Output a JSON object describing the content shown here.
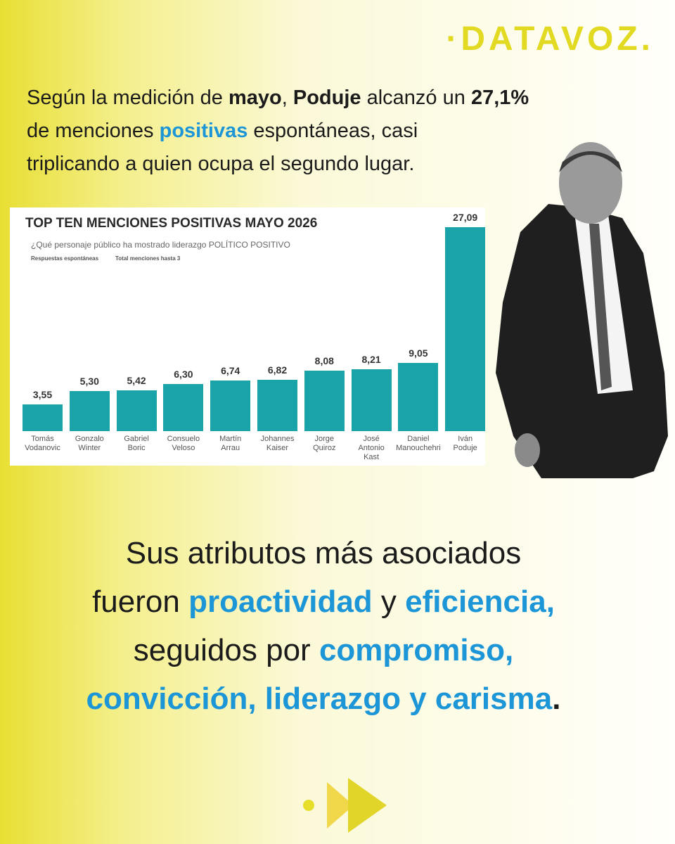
{
  "logo": "·DATAVOZ.",
  "headline": {
    "lines": [
      [
        {
          "text": "Según la medición de ",
          "style": "normal"
        },
        {
          "text": "mayo",
          "style": "bold"
        },
        {
          "text": ", ",
          "style": "normal"
        },
        {
          "text": "Poduje",
          "style": "bold"
        },
        {
          "text": " alcanzó un ",
          "style": "normal"
        },
        {
          "text": "27,1%",
          "style": "bold"
        }
      ],
      [
        {
          "text": "de menciones ",
          "style": "normal"
        },
        {
          "text": "positivas",
          "style": "blue"
        },
        {
          "text": " espontáneas, casi",
          "style": "normal"
        }
      ],
      [
        {
          "text": "triplicando a quien ocupa el segundo lugar.",
          "style": "normal"
        }
      ]
    ]
  },
  "chart_data": {
    "type": "bar",
    "title": "TOP TEN MENCIONES POSITIVAS MAYO 2026",
    "subtitle": "¿Qué personaje público ha mostrado liderazgo POLÍTICO POSITIVO",
    "notes": [
      "Respuestas espontáneas",
      "Total menciones hasta 3"
    ],
    "categories": [
      "Tomás Vodanovic",
      "Gonzalo Winter",
      "Gabriel Boric",
      "Consuelo Veloso",
      "Martín Arrau",
      "Johannes Kaiser",
      "Jorge Quiroz",
      "José Antonio Kast",
      "Daniel Manouchehri",
      "Iván Poduje"
    ],
    "values": [
      3.55,
      5.3,
      5.42,
      6.3,
      6.74,
      6.82,
      8.08,
      8.21,
      9.05,
      27.09
    ],
    "value_labels": [
      "3,55",
      "5,30",
      "5,42",
      "6,30",
      "6,74",
      "6,82",
      "8,08",
      "8,21",
      "9,05",
      "27,09"
    ],
    "color": "#1aa3a8"
  },
  "closing": {
    "lines": [
      [
        {
          "text": "Sus atributos más asociados",
          "style": "normal"
        }
      ],
      [
        {
          "text": "fueron ",
          "style": "normal"
        },
        {
          "text": "proactividad",
          "style": "blue"
        },
        {
          "text": " y ",
          "style": "normal"
        },
        {
          "text": "eficiencia,",
          "style": "blue"
        }
      ],
      [
        {
          "text": "seguidos por ",
          "style": "normal"
        },
        {
          "text": "compromiso,",
          "style": "blue"
        }
      ],
      [
        {
          "text": "convicción, liderazgo y carisma",
          "style": "blue"
        },
        {
          "text": ".",
          "style": "bold"
        }
      ]
    ]
  }
}
